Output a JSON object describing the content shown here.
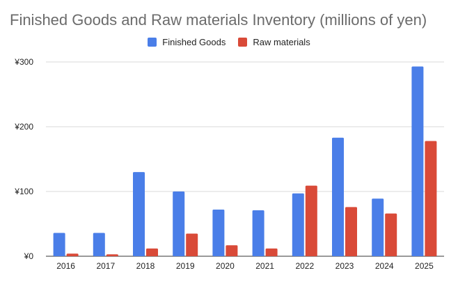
{
  "chart_data": {
    "type": "bar",
    "title": "Finished Goods and Raw materials Inventory (millions of yen)",
    "categories": [
      "2016",
      "2017",
      "2018",
      "2019",
      "2020",
      "2021",
      "2022",
      "2023",
      "2024",
      "2025"
    ],
    "series": [
      {
        "name": "Finished Goods",
        "color": "#4a7ee8",
        "values": [
          36,
          36,
          130,
          100,
          72,
          71,
          97,
          183,
          89,
          293
        ]
      },
      {
        "name": "Raw materials",
        "color": "#d94a38",
        "values": [
          4,
          3,
          12,
          35,
          17,
          12,
          109,
          76,
          66,
          178
        ]
      }
    ],
    "yticks": [
      "¥0",
      "¥100",
      "¥200",
      "¥300"
    ],
    "ytick_values": [
      0,
      100,
      200,
      300
    ],
    "ylim": [
      0,
      300
    ],
    "grid": true,
    "legend_position": "top-center"
  }
}
